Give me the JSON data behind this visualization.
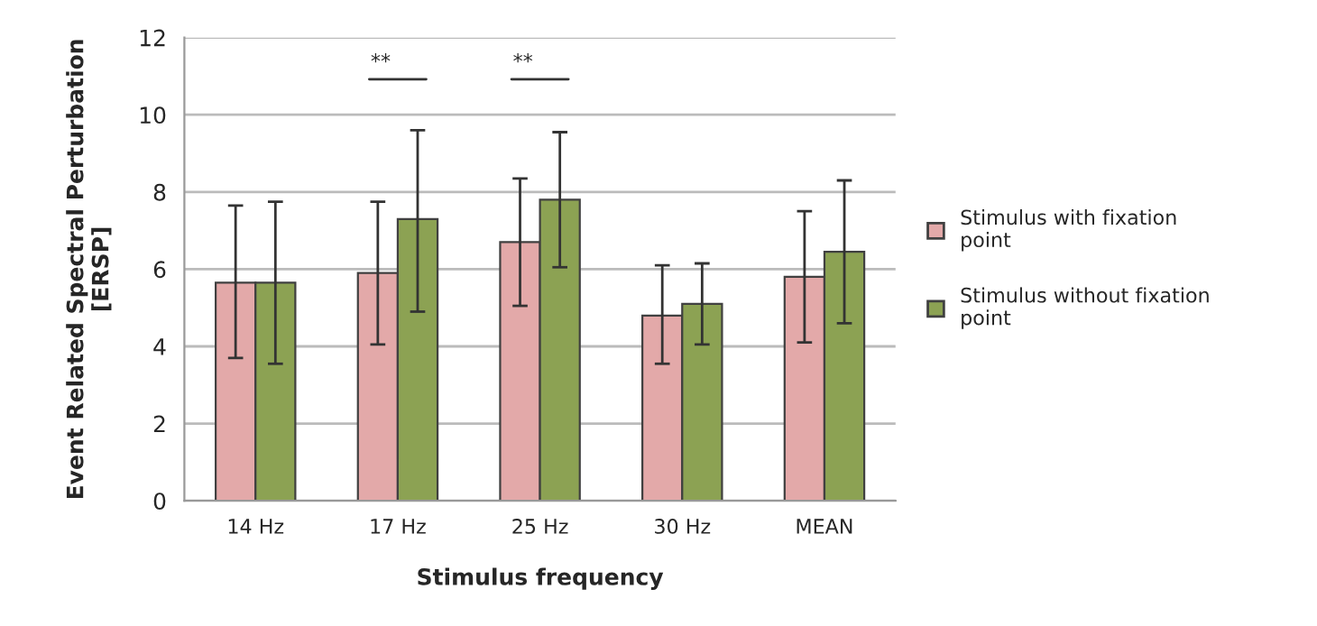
{
  "chart_data": {
    "type": "bar",
    "xlabel": "Stimulus frequency",
    "ylabel": "Event Related Spectral Perturbation\n[ERSP]",
    "categories": [
      "14 Hz",
      "17 Hz",
      "25 Hz",
      "30 Hz",
      "MEAN"
    ],
    "series": [
      {
        "name": "Stimulus with fixation point",
        "color": "#e3a9a9",
        "values": [
          5.65,
          5.9,
          6.7,
          4.8,
          5.8
        ],
        "errors": [
          [
            3.7,
            7.65
          ],
          [
            4.05,
            7.75
          ],
          [
            5.05,
            8.35
          ],
          [
            3.55,
            6.1
          ],
          [
            4.1,
            7.5
          ]
        ]
      },
      {
        "name": "Stimulus without fixation point",
        "color": "#8ca253",
        "values": [
          5.65,
          7.3,
          7.8,
          5.1,
          6.45
        ],
        "errors": [
          [
            3.55,
            7.75
          ],
          [
            4.9,
            9.6
          ],
          [
            6.05,
            9.55
          ],
          [
            4.05,
            6.15
          ],
          [
            4.6,
            8.3
          ]
        ]
      }
    ],
    "ylim": [
      0,
      12
    ],
    "yticks": [
      0,
      2,
      4,
      6,
      8,
      10,
      12
    ],
    "grid": "y",
    "legend": "right",
    "annotations": [
      "**",
      "**"
    ]
  }
}
